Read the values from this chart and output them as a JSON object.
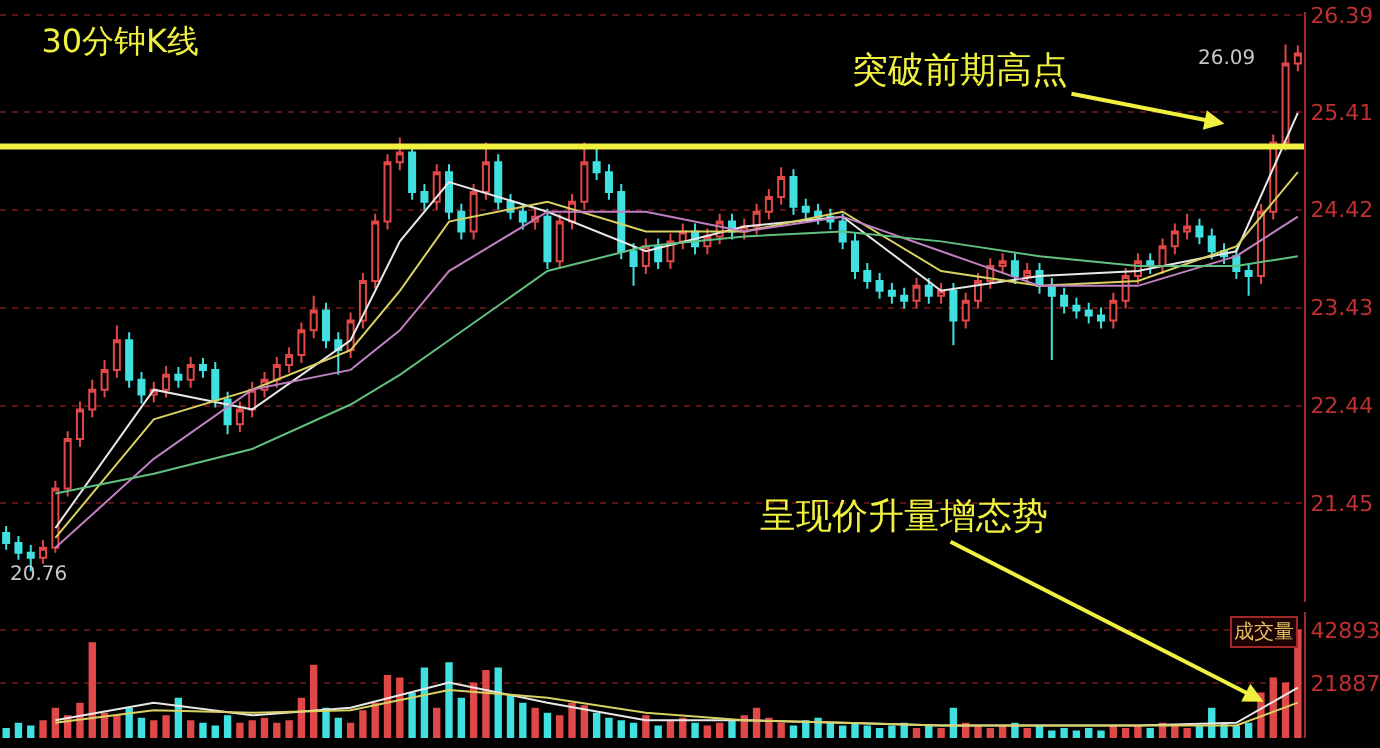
{
  "chart_data": [
    {
      "type": "candlestick",
      "title": "30分钟K线",
      "categories": [
        null,
        null,
        null,
        null,
        null,
        null,
        null,
        null,
        null,
        null,
        null,
        null,
        null,
        null,
        null,
        null,
        null,
        null,
        null,
        null,
        null,
        null,
        null,
        null,
        null,
        null,
        null,
        null,
        null,
        null,
        null,
        null,
        null,
        null,
        null,
        null,
        null,
        null,
        null,
        null,
        null,
        null,
        null,
        null,
        null,
        null,
        null,
        null,
        null,
        null,
        null,
        null,
        null,
        null,
        null,
        null,
        null,
        null,
        null,
        null,
        null,
        null,
        null,
        null,
        null,
        null,
        null,
        null,
        null,
        null,
        null,
        null,
        null,
        null,
        null,
        null,
        null,
        null,
        null,
        null,
        null,
        null,
        null,
        null,
        null,
        null,
        null,
        null,
        null,
        null,
        null,
        null,
        null,
        null,
        null,
        null,
        null,
        null,
        null,
        null,
        null,
        null,
        null,
        null,
        null,
        null
      ],
      "ylim": [
        20.45,
        26.42
      ],
      "yticks": [
        21.45,
        22.44,
        23.43,
        24.42,
        25.41,
        26.39
      ],
      "grid": "y",
      "tick_labels": "y",
      "ref_lines": [
        {
          "axis": "y",
          "value": 25.06,
          "color": "#f0f040"
        }
      ],
      "annotations": [
        "突破前期高点",
        "呈现价升量增态势",
        "26.09",
        "20.76"
      ],
      "series": [
        {
          "colors": [
            "#40e0e0",
            "#40e0e0",
            "#40e0e0",
            "#e04848",
            "#e04848",
            "#e04848",
            "#e04848",
            "#e04848",
            "#e04848",
            "#e04848",
            "#40e0e0",
            "#40e0e0",
            "#e04848",
            "#e04848",
            "#40e0e0",
            "#e04848",
            "#40e0e0",
            "#40e0e0",
            "#40e0e0",
            "#e04848",
            "#e04848",
            "#e04848",
            "#e04848",
            "#e04848",
            "#e04848",
            "#e04848",
            "#40e0e0",
            "#40e0e0",
            "#e04848",
            "#e04848",
            "#e04848",
            "#e04848",
            "#e04848",
            "#40e0e0",
            "#40e0e0",
            "#e04848",
            "#40e0e0",
            "#40e0e0",
            "#e04848",
            "#e04848",
            "#40e0e0",
            "#40e0e0",
            "#40e0e0",
            "#e04848",
            "#40e0e0",
            "#e04848",
            "#e04848",
            "#e04848",
            "#40e0e0",
            "#40e0e0",
            "#40e0e0",
            "#40e0e0",
            "#e04848",
            "#40e0e0",
            "#e04848",
            "#e04848",
            "#40e0e0",
            "#e04848",
            "#e04848",
            "#40e0e0",
            "#e04848",
            "#e04848",
            "#e04848",
            "#e04848",
            "#40e0e0",
            "#40e0e0",
            "#40e0e0",
            "#40e0e0",
            "#40e0e0",
            "#40e0e0",
            "#40e0e0",
            "#40e0e0",
            "#40e0e0",
            "#40e0e0",
            "#e04848",
            "#40e0e0",
            "#e04848",
            "#40e0e0",
            "#e04848",
            "#e04848",
            "#e04848",
            "#e04848",
            "#40e0e0",
            "#e04848",
            "#40e0e0",
            "#40e0e0",
            "#40e0e0",
            "#40e0e0",
            "#40e0e0",
            "#40e0e0",
            "#e04848",
            "#e04848",
            "#e04848",
            "#40e0e0",
            "#e04848",
            "#e04848",
            "#e04848",
            "#40e0e0",
            "#40e0e0",
            "#40e0e0",
            "#40e0e0",
            "#40e0e0",
            "#e04848",
            "#e04848",
            "#e04848",
            "#e04848"
          ],
          "ohlc": [
            [
              21.15,
              21.22,
              20.98,
              21.05
            ],
            [
              21.05,
              21.12,
              20.88,
              20.95
            ],
            [
              20.95,
              21.03,
              20.76,
              20.9
            ],
            [
              20.9,
              21.08,
              20.84,
              21.0
            ],
            [
              21.0,
              21.68,
              20.95,
              21.6
            ],
            [
              21.6,
              22.18,
              21.52,
              22.1
            ],
            [
              22.1,
              22.48,
              22.02,
              22.4
            ],
            [
              22.4,
              22.7,
              22.32,
              22.6
            ],
            [
              22.6,
              22.9,
              22.52,
              22.8
            ],
            [
              22.8,
              23.25,
              22.72,
              23.1
            ],
            [
              23.1,
              23.18,
              22.62,
              22.7
            ],
            [
              22.7,
              22.78,
              22.46,
              22.55
            ],
            [
              22.55,
              22.68,
              22.47,
              22.6
            ],
            [
              22.6,
              22.84,
              22.52,
              22.75
            ],
            [
              22.75,
              22.83,
              22.62,
              22.7
            ],
            [
              22.7,
              22.93,
              22.62,
              22.85
            ],
            [
              22.85,
              22.92,
              22.72,
              22.8
            ],
            [
              22.8,
              22.88,
              22.42,
              22.5
            ],
            [
              22.5,
              22.58,
              22.15,
              22.25
            ],
            [
              22.25,
              22.48,
              22.17,
              22.4
            ],
            [
              22.4,
              22.68,
              22.32,
              22.6
            ],
            [
              22.6,
              22.78,
              22.52,
              22.7
            ],
            [
              22.7,
              22.93,
              22.62,
              22.85
            ],
            [
              22.85,
              23.03,
              22.77,
              22.95
            ],
            [
              22.95,
              23.28,
              22.87,
              23.2
            ],
            [
              23.2,
              23.55,
              23.12,
              23.4
            ],
            [
              23.4,
              23.48,
              23.02,
              23.1
            ],
            [
              23.1,
              23.18,
              22.75,
              23.0
            ],
            [
              23.0,
              23.38,
              22.92,
              23.3
            ],
            [
              23.3,
              23.78,
              23.22,
              23.7
            ],
            [
              23.7,
              24.38,
              23.62,
              24.3
            ],
            [
              24.3,
              24.98,
              24.22,
              24.9
            ],
            [
              24.9,
              25.15,
              24.82,
              25.0
            ],
            [
              25.0,
              25.08,
              24.52,
              24.6
            ],
            [
              24.6,
              24.68,
              24.42,
              24.5
            ],
            [
              24.5,
              24.88,
              24.42,
              24.8
            ],
            [
              24.8,
              24.88,
              24.32,
              24.4
            ],
            [
              24.4,
              24.48,
              24.12,
              24.2
            ],
            [
              24.2,
              24.68,
              24.12,
              24.6
            ],
            [
              24.6,
              25.1,
              24.52,
              24.9
            ],
            [
              24.9,
              24.98,
              24.42,
              24.5
            ],
            [
              24.5,
              24.58,
              24.32,
              24.4
            ],
            [
              24.4,
              24.48,
              24.22,
              24.3
            ],
            [
              24.3,
              24.43,
              24.22,
              24.35
            ],
            [
              24.35,
              24.43,
              23.82,
              23.9
            ],
            [
              23.9,
              24.38,
              23.82,
              24.3
            ],
            [
              24.3,
              24.58,
              24.22,
              24.5
            ],
            [
              24.5,
              25.1,
              24.42,
              24.9
            ],
            [
              24.9,
              25.05,
              24.72,
              24.8
            ],
            [
              24.8,
              24.88,
              24.52,
              24.6
            ],
            [
              24.6,
              24.68,
              23.92,
              24.0
            ],
            [
              24.0,
              24.08,
              23.65,
              23.85
            ],
            [
              23.85,
              24.13,
              23.77,
              24.05
            ],
            [
              24.05,
              24.13,
              23.82,
              23.9
            ],
            [
              23.9,
              24.18,
              23.82,
              24.1
            ],
            [
              24.1,
              24.28,
              24.02,
              24.2
            ],
            [
              24.2,
              24.28,
              23.97,
              24.05
            ],
            [
              24.05,
              24.23,
              23.97,
              24.15
            ],
            [
              24.15,
              24.38,
              24.07,
              24.3
            ],
            [
              24.3,
              24.38,
              24.12,
              24.2
            ],
            [
              24.2,
              24.33,
              24.12,
              24.25
            ],
            [
              24.25,
              24.48,
              24.17,
              24.4
            ],
            [
              24.4,
              24.63,
              24.32,
              24.55
            ],
            [
              24.55,
              24.85,
              24.47,
              24.75
            ],
            [
              24.75,
              24.83,
              24.37,
              24.45
            ],
            [
              24.45,
              24.53,
              24.32,
              24.4
            ],
            [
              24.4,
              24.48,
              24.27,
              24.35
            ],
            [
              24.35,
              24.43,
              24.22,
              24.3
            ],
            [
              24.3,
              24.38,
              24.02,
              24.1
            ],
            [
              24.1,
              24.18,
              23.72,
              23.8
            ],
            [
              23.8,
              23.88,
              23.62,
              23.7
            ],
            [
              23.7,
              23.78,
              23.52,
              23.6
            ],
            [
              23.6,
              23.68,
              23.47,
              23.55
            ],
            [
              23.55,
              23.63,
              23.42,
              23.5
            ],
            [
              23.5,
              23.73,
              23.42,
              23.65
            ],
            [
              23.65,
              23.73,
              23.47,
              23.55
            ],
            [
              23.55,
              23.68,
              23.47,
              23.6
            ],
            [
              23.6,
              23.68,
              23.05,
              23.3
            ],
            [
              23.3,
              23.58,
              23.22,
              23.5
            ],
            [
              23.5,
              23.78,
              23.42,
              23.7
            ],
            [
              23.7,
              23.93,
              23.62,
              23.85
            ],
            [
              23.85,
              23.98,
              23.77,
              23.9
            ],
            [
              23.9,
              23.98,
              23.67,
              23.75
            ],
            [
              23.75,
              23.88,
              23.67,
              23.8
            ],
            [
              23.8,
              23.88,
              23.57,
              23.65
            ],
            [
              23.65,
              23.73,
              22.9,
              23.55
            ],
            [
              23.55,
              23.63,
              23.37,
              23.45
            ],
            [
              23.45,
              23.53,
              23.32,
              23.4
            ],
            [
              23.4,
              23.48,
              23.27,
              23.35
            ],
            [
              23.35,
              23.43,
              23.22,
              23.3
            ],
            [
              23.3,
              23.58,
              23.22,
              23.5
            ],
            [
              23.5,
              23.83,
              23.42,
              23.75
            ],
            [
              23.75,
              23.98,
              23.67,
              23.9
            ],
            [
              23.9,
              23.98,
              23.77,
              23.85
            ],
            [
              23.85,
              24.13,
              23.77,
              24.05
            ],
            [
              24.05,
              24.28,
              23.97,
              24.2
            ],
            [
              24.2,
              24.38,
              24.12,
              24.25
            ],
            [
              24.25,
              24.33,
              24.07,
              24.15
            ],
            [
              24.15,
              24.23,
              23.92,
              24.0
            ],
            [
              24.0,
              24.08,
              23.87,
              23.95
            ],
            [
              23.95,
              24.03,
              23.72,
              23.8
            ],
            [
              23.8,
              23.88,
              23.55,
              23.75
            ],
            [
              23.75,
              24.48,
              23.67,
              24.4
            ],
            [
              24.4,
              25.18,
              24.32,
              25.1
            ],
            [
              25.1,
              26.09,
              25.02,
              25.9
            ],
            [
              25.9,
              26.08,
              25.82,
              26.0
            ]
          ]
        },
        {
          "type": "line",
          "color": "#e8e8e8",
          "values": [
            null,
            null,
            null,
            null,
            21.2,
            null,
            null,
            null,
            null,
            null,
            null,
            null,
            22.6,
            null,
            null,
            null,
            null,
            null,
            null,
            null,
            22.4,
            null,
            null,
            null,
            null,
            null,
            null,
            null,
            23.1,
            null,
            null,
            null,
            24.1,
            null,
            null,
            null,
            24.7,
            null,
            null,
            null,
            null,
            null,
            null,
            null,
            24.4,
            null,
            null,
            null,
            null,
            null,
            null,
            null,
            24.0,
            null,
            null,
            null,
            null,
            null,
            null,
            null,
            24.25,
            null,
            null,
            null,
            null,
            null,
            null,
            null,
            24.35,
            null,
            null,
            null,
            null,
            null,
            null,
            null,
            23.6,
            null,
            null,
            null,
            null,
            null,
            null,
            null,
            23.75,
            null,
            null,
            null,
            null,
            null,
            null,
            null,
            23.8,
            null,
            null,
            null,
            null,
            null,
            null,
            null,
            24.0,
            null,
            null,
            null,
            null,
            25.4
          ]
        },
        {
          "type": "line",
          "color": "#d8d060",
          "values": [
            null,
            null,
            null,
            null,
            21.1,
            null,
            null,
            null,
            null,
            null,
            null,
            null,
            22.3,
            null,
            null,
            null,
            null,
            null,
            null,
            null,
            22.6,
            null,
            null,
            null,
            null,
            null,
            null,
            null,
            23.0,
            null,
            null,
            null,
            23.6,
            null,
            null,
            null,
            24.3,
            null,
            null,
            null,
            null,
            null,
            null,
            null,
            24.5,
            null,
            null,
            null,
            null,
            null,
            null,
            null,
            24.2,
            null,
            null,
            null,
            null,
            null,
            null,
            null,
            24.2,
            null,
            null,
            null,
            null,
            null,
            null,
            null,
            24.4,
            null,
            null,
            null,
            null,
            null,
            null,
            null,
            23.8,
            null,
            null,
            null,
            null,
            null,
            null,
            null,
            23.65,
            null,
            null,
            null,
            null,
            null,
            null,
            null,
            23.7,
            null,
            null,
            null,
            null,
            null,
            null,
            null,
            24.05,
            null,
            null,
            null,
            null,
            24.8
          ]
        },
        {
          "type": "line",
          "color": "#c080c0",
          "values": [
            null,
            null,
            null,
            null,
            21.0,
            null,
            null,
            null,
            null,
            null,
            null,
            null,
            21.9,
            null,
            null,
            null,
            null,
            null,
            null,
            null,
            22.6,
            null,
            null,
            null,
            null,
            null,
            null,
            null,
            22.8,
            null,
            null,
            null,
            23.2,
            null,
            null,
            null,
            23.8,
            null,
            null,
            null,
            null,
            null,
            null,
            null,
            24.4,
            null,
            null,
            null,
            null,
            null,
            null,
            null,
            24.4,
            null,
            null,
            null,
            null,
            null,
            null,
            null,
            24.2,
            null,
            null,
            null,
            null,
            null,
            null,
            null,
            24.35,
            null,
            null,
            null,
            null,
            null,
            null,
            null,
            24.0,
            null,
            null,
            null,
            null,
            null,
            null,
            null,
            23.65,
            null,
            null,
            null,
            null,
            null,
            null,
            null,
            23.65,
            null,
            null,
            null,
            null,
            null,
            null,
            null,
            23.95,
            null,
            null,
            null,
            null,
            24.35
          ]
        },
        {
          "type": "line",
          "color": "#60c080",
          "values": [
            null,
            null,
            null,
            null,
            21.55,
            null,
            null,
            null,
            null,
            null,
            null,
            null,
            21.75,
            null,
            null,
            null,
            null,
            null,
            null,
            null,
            22.0,
            null,
            null,
            null,
            null,
            null,
            null,
            null,
            22.45,
            null,
            null,
            null,
            22.75,
            null,
            null,
            null,
            23.1,
            null,
            null,
            null,
            null,
            null,
            null,
            null,
            23.8,
            null,
            null,
            null,
            null,
            null,
            null,
            null,
            24.05,
            null,
            null,
            null,
            null,
            null,
            null,
            null,
            24.15,
            null,
            null,
            null,
            null,
            null,
            null,
            null,
            24.2,
            null,
            null,
            null,
            null,
            null,
            null,
            null,
            24.1,
            null,
            null,
            null,
            null,
            null,
            null,
            null,
            23.95,
            null,
            null,
            null,
            null,
            null,
            null,
            null,
            23.85,
            null,
            null,
            null,
            null,
            null,
            null,
            null,
            23.85,
            null,
            null,
            null,
            null,
            23.95
          ]
        }
      ]
    },
    {
      "type": "bar",
      "ylabel": "成交量",
      "categories": [
        null,
        null,
        null,
        null,
        null,
        null,
        null,
        null,
        null,
        null,
        null,
        null,
        null,
        null,
        null,
        null,
        null,
        null,
        null,
        null,
        null,
        null,
        null,
        null,
        null,
        null,
        null,
        null,
        null,
        null,
        null,
        null,
        null,
        null,
        null,
        null,
        null,
        null,
        null,
        null,
        null,
        null,
        null,
        null,
        null,
        null,
        null,
        null,
        null,
        null,
        null,
        null,
        null,
        null,
        null,
        null,
        null,
        null,
        null,
        null,
        null,
        null,
        null,
        null,
        null,
        null,
        null,
        null,
        null,
        null,
        null,
        null,
        null,
        null,
        null,
        null,
        null,
        null,
        null,
        null,
        null,
        null,
        null,
        null,
        null,
        null,
        null,
        null,
        null,
        null,
        null,
        null,
        null,
        null,
        null,
        null,
        null,
        null,
        null,
        null,
        null,
        null,
        null,
        null,
        null,
        null
      ],
      "ylim": [
        0,
        49800
      ],
      "yticks": [
        21887,
        42893
      ],
      "grid": "y",
      "tick_labels": "y",
      "series": [
        {
          "colors": [
            "#40e0e0",
            "#40e0e0",
            "#40e0e0",
            "#e04848",
            "#e04848",
            "#e04848",
            "#e04848",
            "#e04848",
            "#e04848",
            "#e04848",
            "#40e0e0",
            "#40e0e0",
            "#e04848",
            "#e04848",
            "#40e0e0",
            "#e04848",
            "#40e0e0",
            "#40e0e0",
            "#40e0e0",
            "#e04848",
            "#e04848",
            "#e04848",
            "#e04848",
            "#e04848",
            "#e04848",
            "#e04848",
            "#40e0e0",
            "#40e0e0",
            "#e04848",
            "#e04848",
            "#e04848",
            "#e04848",
            "#e04848",
            "#40e0e0",
            "#40e0e0",
            "#e04848",
            "#40e0e0",
            "#40e0e0",
            "#e04848",
            "#e04848",
            "#40e0e0",
            "#40e0e0",
            "#40e0e0",
            "#e04848",
            "#40e0e0",
            "#e04848",
            "#e04848",
            "#e04848",
            "#40e0e0",
            "#40e0e0",
            "#40e0e0",
            "#40e0e0",
            "#e04848",
            "#40e0e0",
            "#e04848",
            "#e04848",
            "#40e0e0",
            "#e04848",
            "#e04848",
            "#40e0e0",
            "#e04848",
            "#e04848",
            "#e04848",
            "#e04848",
            "#40e0e0",
            "#40e0e0",
            "#40e0e0",
            "#40e0e0",
            "#40e0e0",
            "#40e0e0",
            "#40e0e0",
            "#40e0e0",
            "#40e0e0",
            "#40e0e0",
            "#e04848",
            "#40e0e0",
            "#e04848",
            "#40e0e0",
            "#e04848",
            "#e04848",
            "#e04848",
            "#e04848",
            "#40e0e0",
            "#e04848",
            "#40e0e0",
            "#40e0e0",
            "#40e0e0",
            "#40e0e0",
            "#40e0e0",
            "#40e0e0",
            "#e04848",
            "#e04848",
            "#e04848",
            "#40e0e0",
            "#e04848",
            "#e04848",
            "#e04848",
            "#40e0e0",
            "#40e0e0",
            "#40e0e0",
            "#40e0e0",
            "#40e0e0",
            "#e04848",
            "#e04848",
            "#e04848",
            "#e04848"
          ],
          "values": [
            4000,
            6000,
            5000,
            7000,
            12000,
            9000,
            14000,
            38000,
            10000,
            9000,
            12000,
            8000,
            7000,
            9000,
            16000,
            7000,
            6000,
            5000,
            9000,
            6000,
            7000,
            8000,
            6000,
            7000,
            16000,
            29000,
            12000,
            8000,
            6000,
            11000,
            14000,
            25000,
            24000,
            18000,
            28000,
            12000,
            30000,
            16000,
            22000,
            27000,
            28000,
            17000,
            14000,
            12000,
            10000,
            9000,
            14000,
            13000,
            10000,
            8000,
            7000,
            6000,
            9000,
            5000,
            7000,
            8000,
            6000,
            5000,
            6000,
            7000,
            9000,
            12000,
            8000,
            6000,
            5000,
            7000,
            8000,
            6000,
            5000,
            6000,
            5000,
            4000,
            5000,
            6000,
            4000,
            5000,
            4000,
            12000,
            6000,
            5000,
            4000,
            5000,
            6000,
            4000,
            5000,
            3000,
            4000,
            3000,
            4000,
            3000,
            5000,
            4000,
            5000,
            4000,
            6000,
            5000,
            4000,
            5000,
            12000,
            6000,
            5000,
            6000,
            18000,
            24000,
            22000,
            43000
          ]
        },
        {
          "type": "line",
          "color": "#e8e8e8",
          "values": [
            null,
            null,
            null,
            null,
            7000,
            null,
            null,
            null,
            null,
            null,
            null,
            null,
            14000,
            null,
            null,
            null,
            null,
            null,
            null,
            null,
            9000,
            null,
            null,
            null,
            null,
            null,
            null,
            null,
            12000,
            null,
            null,
            null,
            null,
            null,
            null,
            null,
            22000,
            null,
            null,
            null,
            null,
            null,
            null,
            null,
            14000,
            null,
            null,
            null,
            null,
            null,
            null,
            null,
            7000,
            null,
            null,
            null,
            null,
            null,
            null,
            null,
            7000,
            null,
            null,
            null,
            null,
            null,
            null,
            null,
            6000,
            null,
            null,
            null,
            null,
            null,
            null,
            null,
            5000,
            null,
            null,
            null,
            null,
            null,
            null,
            null,
            5000,
            null,
            null,
            null,
            null,
            null,
            null,
            null,
            5000,
            null,
            null,
            null,
            null,
            null,
            null,
            null,
            6000,
            null,
            null,
            null,
            null,
            20000
          ]
        },
        {
          "type": "line",
          "color": "#d8d060",
          "values": [
            null,
            null,
            null,
            null,
            6000,
            null,
            null,
            null,
            null,
            null,
            null,
            null,
            11000,
            null,
            null,
            null,
            null,
            null,
            null,
            null,
            10000,
            null,
            null,
            null,
            null,
            null,
            null,
            null,
            11000,
            null,
            null,
            null,
            null,
            null,
            null,
            null,
            19000,
            null,
            null,
            null,
            null,
            null,
            null,
            null,
            16000,
            null,
            null,
            null,
            null,
            null,
            null,
            null,
            10000,
            null,
            null,
            null,
            null,
            null,
            null,
            null,
            7000,
            null,
            null,
            null,
            null,
            null,
            null,
            null,
            6000,
            null,
            null,
            null,
            null,
            null,
            null,
            null,
            5000,
            null,
            null,
            null,
            null,
            null,
            null,
            null,
            5000,
            null,
            null,
            null,
            null,
            null,
            null,
            null,
            5000,
            null,
            null,
            null,
            null,
            null,
            null,
            null,
            5000,
            null,
            null,
            null,
            null,
            14000
          ]
        }
      ]
    }
  ]
}
